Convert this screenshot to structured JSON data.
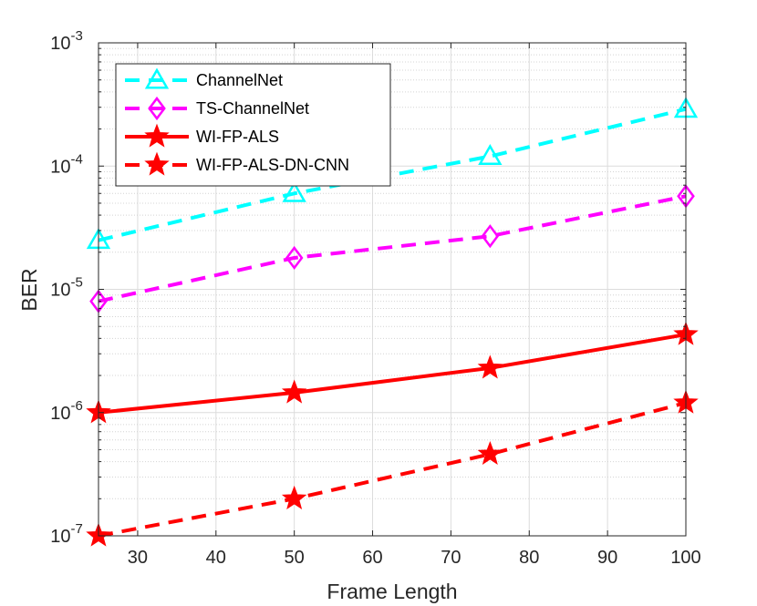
{
  "chart_data": {
    "type": "line",
    "title": "",
    "xlabel": "Frame Length",
    "ylabel": "BER",
    "x": [
      25,
      50,
      75,
      100
    ],
    "xlim": [
      25,
      100
    ],
    "ylim": [
      1e-07,
      0.001
    ],
    "yscale": "log",
    "xticks": [
      30,
      40,
      50,
      60,
      70,
      80,
      90,
      100
    ],
    "xtick_labels": [
      "30",
      "40",
      "50",
      "60",
      "70",
      "80",
      "90",
      "100"
    ],
    "yticks": [
      {
        "value": 1e-07,
        "base": "10",
        "exp": "-7"
      },
      {
        "value": 1e-06,
        "base": "10",
        "exp": "-6"
      },
      {
        "value": 1e-05,
        "base": "10",
        "exp": "-5"
      },
      {
        "value": 0.0001,
        "base": "10",
        "exp": "-4"
      },
      {
        "value": 0.001,
        "base": "10",
        "exp": "-3"
      }
    ],
    "grid": true,
    "legend_position": "top-left",
    "series": [
      {
        "name": "ChannelNet",
        "values": [
          2.5e-05,
          6e-05,
          0.00012,
          0.00029
        ],
        "color": "#00ffff",
        "line": "dashed",
        "marker": "triangle"
      },
      {
        "name": "TS-ChannelNet",
        "values": [
          8e-06,
          1.8e-05,
          2.7e-05,
          5.7e-05
        ],
        "color": "#ff00ff",
        "line": "dashed",
        "marker": "diamond"
      },
      {
        "name": "WI-FP-ALS",
        "values": [
          1e-06,
          1.45e-06,
          2.3e-06,
          4.3e-06
        ],
        "color": "#ff0000",
        "line": "solid",
        "marker": "star"
      },
      {
        "name": "WI-FP-ALS-DN-CNN",
        "values": [
          1e-07,
          2e-07,
          4.6e-07,
          1.2e-06
        ],
        "color": "#ff0000",
        "line": "dashed",
        "marker": "star"
      }
    ]
  }
}
